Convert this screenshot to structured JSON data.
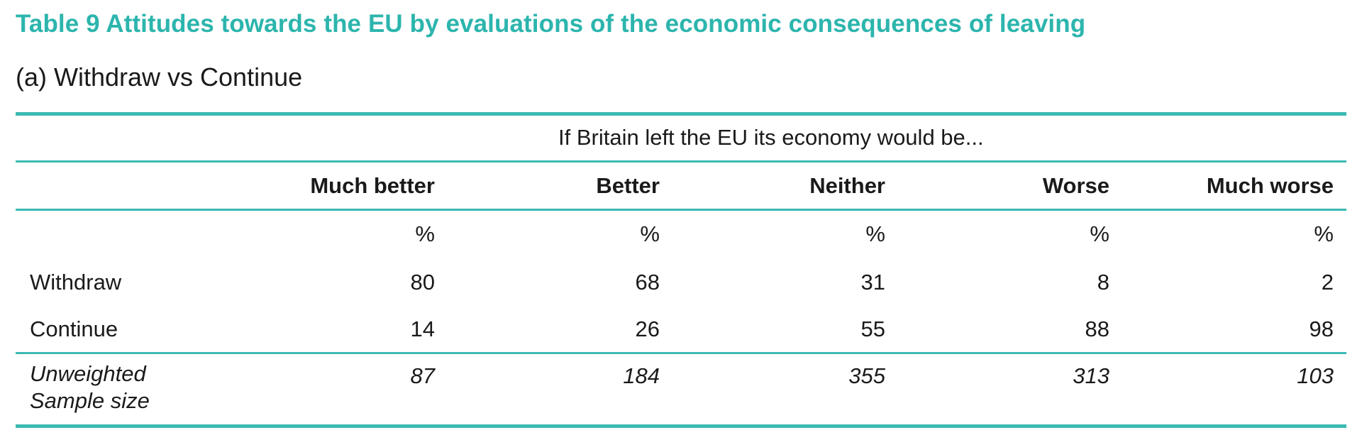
{
  "title": "Table 9 Attitudes towards the EU by evaluations of the economic consequences of leaving",
  "subtitle": "(a) Withdraw vs Continue",
  "accent_color": "#2cb5ad",
  "rule_color": "#3bbab2",
  "table": {
    "spanner": "If Britain left the EU its economy would be...",
    "columns": [
      "Much better",
      "Better",
      "Neither",
      "Worse",
      "Much worse"
    ],
    "unit_row": [
      "%",
      "%",
      "%",
      "%",
      "%"
    ],
    "rows": [
      {
        "label": "Withdraw",
        "values": [
          "80",
          "68",
          "31",
          "8",
          "2"
        ]
      },
      {
        "label": "Continue",
        "values": [
          "14",
          "26",
          "55",
          "88",
          "98"
        ]
      }
    ],
    "sample_row": {
      "label_line1": "Unweighted",
      "label_line2": "Sample size",
      "values": [
        "87",
        "184",
        "355",
        "313",
        "103"
      ]
    }
  }
}
